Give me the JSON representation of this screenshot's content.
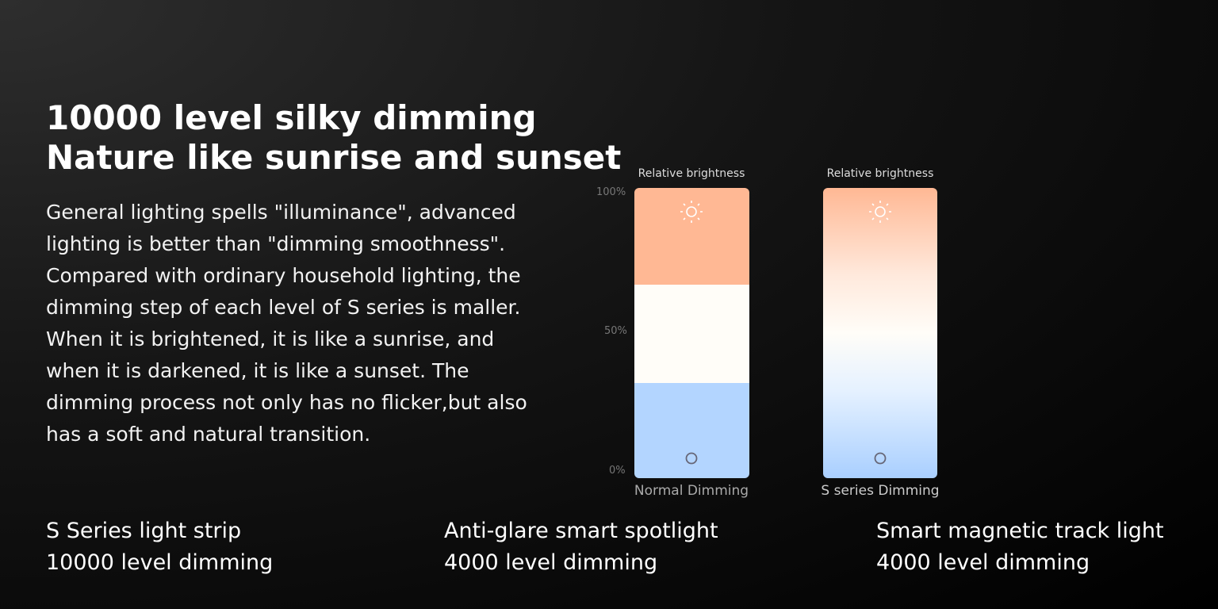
{
  "heading": {
    "lines": [
      "10000 level silky dimming",
      "Nature like sunrise and sunset"
    ]
  },
  "body": {
    "lines": [
      "General lighting spells \"illuminance\", advanced",
      "lighting is better than \"dimming smoothness\".",
      "Compared with ordinary household lighting, the",
      "dimming step of each level of S series is maller.",
      "When it is brightened, it is like a sunrise, and",
      "when it is darkened, it is like a sunset. The",
      "dimming process not only has no flicker,but also",
      "has a soft and natural transition."
    ]
  },
  "illustration": {
    "scale": [
      "100%",
      "50%",
      "0%"
    ],
    "panels": [
      {
        "title": "Relative brightness",
        "caption": "Normal Dimming"
      },
      {
        "title": "Relative brightness",
        "caption": "S series Dimming"
      }
    ]
  },
  "features": [
    {
      "name": "S Series light strip",
      "detail": "10000 level dimming"
    },
    {
      "name": "Anti-glare smart spotlight",
      "detail": "4000 level dimming"
    },
    {
      "name": "Smart magnetic track light",
      "detail": "4000 level dimming"
    }
  ]
}
